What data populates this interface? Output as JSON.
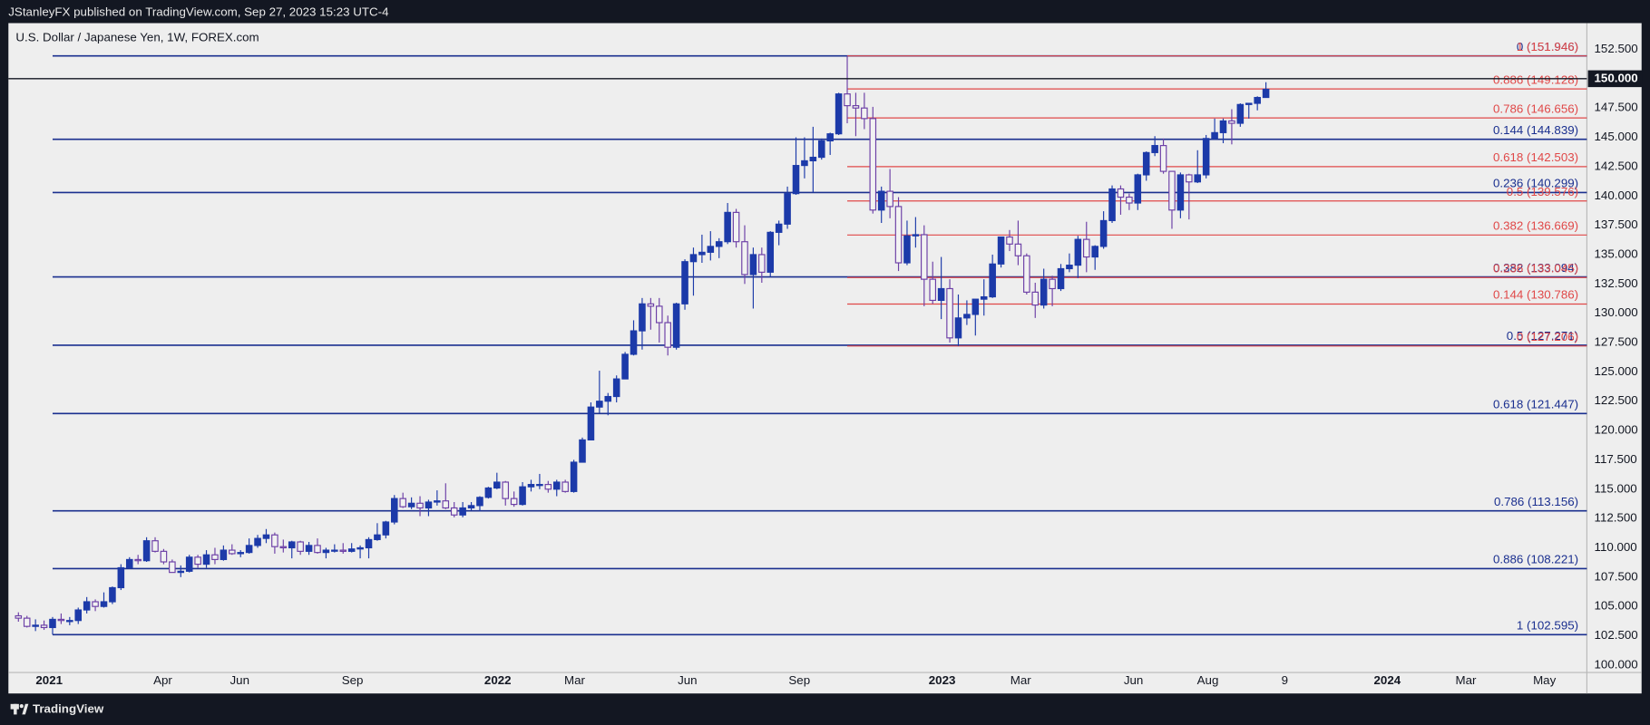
{
  "header": {
    "publisher": "JStanleyFX published on TradingView.com, Sep 27, 2023 15:23 UTC-4",
    "symbol": "U.S. Dollar / Japanese Yen, 1W, FOREX.com"
  },
  "footer": {
    "brand": "TradingView"
  },
  "chart_data": {
    "type": "candlestick",
    "up_color": "#1c3aa9",
    "down_color": "#6c3fa6",
    "down_fill": "#f2f2f2",
    "grid": false,
    "xlim": [
      -5.17,
      179.56
    ],
    "ylim": [
      99.37,
      154.74
    ],
    "xticks": [
      {
        "value": -0.4,
        "label": "2021"
      },
      {
        "value": 12.9,
        "label": "Apr"
      },
      {
        "value": 21.9,
        "label": "Jun"
      },
      {
        "value": 35.1,
        "label": "Sep"
      },
      {
        "value": 52.1,
        "label": "2022"
      },
      {
        "value": 61.1,
        "label": "Mar"
      },
      {
        "value": 74.3,
        "label": "Jun"
      },
      {
        "value": 87.4,
        "label": "Sep"
      },
      {
        "value": 104.1,
        "label": "2023"
      },
      {
        "value": 113.3,
        "label": "Mar"
      },
      {
        "value": 126.5,
        "label": "Jun"
      },
      {
        "value": 135.2,
        "label": "Aug"
      },
      {
        "value": 144.2,
        "label": "9"
      },
      {
        "value": 156.2,
        "label": "2024"
      },
      {
        "value": 165.4,
        "label": "Mar"
      },
      {
        "value": 174.6,
        "label": "May"
      }
    ],
    "yticks": [
      {
        "value": 100,
        "label": "100.000"
      },
      {
        "value": 102.5,
        "label": "102.500"
      },
      {
        "value": 105,
        "label": "105.000"
      },
      {
        "value": 107.5,
        "label": "107.500"
      },
      {
        "value": 110,
        "label": "110.000"
      },
      {
        "value": 112.5,
        "label": "112.500"
      },
      {
        "value": 115,
        "label": "115.000"
      },
      {
        "value": 117.5,
        "label": "117.500"
      },
      {
        "value": 120,
        "label": "120.000"
      },
      {
        "value": 122.5,
        "label": "122.500"
      },
      {
        "value": 125,
        "label": "125.000"
      },
      {
        "value": 127.5,
        "label": "127.500"
      },
      {
        "value": 130,
        "label": "130.000"
      },
      {
        "value": 132.5,
        "label": "132.500"
      },
      {
        "value": 135,
        "label": "135.000"
      },
      {
        "value": 137.5,
        "label": "137.500"
      },
      {
        "value": 140,
        "label": "140.000"
      },
      {
        "value": 142.5,
        "label": "142.500"
      },
      {
        "value": 145,
        "label": "145.000"
      },
      {
        "value": 147.5,
        "label": "147.500"
      },
      {
        "value": 152.5,
        "label": "152.500"
      }
    ],
    "horizontal_line": {
      "value": 150,
      "label": "150.000",
      "color": "#131722"
    },
    "fib_retracements": [
      {
        "x_start": 0,
        "color": "#1a2f8f",
        "levels": [
          {
            "value": 151.946,
            "label": "0 (151.946)"
          },
          {
            "value": 144.839,
            "label": "0.144 (144.839)"
          },
          {
            "value": 140.299,
            "label": "0.236 (140.299)"
          },
          {
            "value": 133.094,
            "label": "0.382 (133.094)"
          },
          {
            "value": 127.271,
            "label": "0.5 (127.271)"
          },
          {
            "value": 121.447,
            "label": "0.618 (121.447)"
          },
          {
            "value": 113.156,
            "label": "0.786 (113.156)"
          },
          {
            "value": 108.221,
            "label": "0.886 (108.221)"
          },
          {
            "value": 102.595,
            "label": "1 (102.595)"
          }
        ]
      },
      {
        "x_start": 93,
        "color": "#e04848",
        "levels": [
          {
            "value": 151.946,
            "label": "1 (151.946)"
          },
          {
            "value": 149.128,
            "label": "0.886 (149.128)"
          },
          {
            "value": 146.656,
            "label": "0.786 (146.656)"
          },
          {
            "value": 142.503,
            "label": "0.618 (142.503)"
          },
          {
            "value": 139.576,
            "label": "0.5 (139.576)"
          },
          {
            "value": 136.669,
            "label": "0.382 (136.669)"
          },
          {
            "value": 133.045,
            "label": "0.236 (133.045)"
          },
          {
            "value": 130.786,
            "label": "0.144 (130.786)"
          },
          {
            "value": 127.206,
            "label": "0 (127.206)"
          }
        ]
      }
    ],
    "x": [
      -4,
      -3,
      -2,
      -1,
      0,
      1,
      2,
      3,
      4,
      5,
      6,
      7,
      8,
      9,
      10,
      11,
      12,
      13,
      14,
      15,
      16,
      17,
      18,
      19,
      20,
      21,
      22,
      23,
      24,
      25,
      26,
      27,
      28,
      29,
      30,
      31,
      32,
      33,
      34,
      35,
      36,
      37,
      38,
      39,
      40,
      41,
      42,
      43,
      44,
      45,
      46,
      47,
      48,
      49,
      50,
      51,
      52,
      53,
      54,
      55,
      56,
      57,
      58,
      59,
      60,
      61,
      62,
      63,
      64,
      65,
      66,
      67,
      68,
      69,
      70,
      71,
      72,
      73,
      74,
      75,
      76,
      77,
      78,
      79,
      80,
      81,
      82,
      83,
      84,
      85,
      86,
      87,
      88,
      89,
      90,
      91,
      92,
      93,
      94,
      95,
      96,
      97,
      98,
      99,
      100,
      101,
      102,
      103,
      104,
      105,
      106,
      107,
      108,
      109,
      110,
      111,
      112,
      113,
      114,
      115,
      116,
      117,
      118,
      119,
      120,
      121,
      122,
      123,
      124,
      125,
      126,
      127,
      128,
      129,
      130,
      131,
      132,
      133,
      134,
      135,
      136,
      137,
      138,
      139,
      140,
      141,
      142
    ],
    "open": [
      104.2,
      104.0,
      103.3,
      103.4,
      103.2,
      103.9,
      103.8,
      103.8,
      104.7,
      105.4,
      105.0,
      105.4,
      106.6,
      108.3,
      109.0,
      108.9,
      110.6,
      109.7,
      108.8,
      107.9,
      108.0,
      109.2,
      108.6,
      109.4,
      109.0,
      109.8,
      109.5,
      109.6,
      110.2,
      110.8,
      111.1,
      110.1,
      110.0,
      110.5,
      109.7,
      110.2,
      109.6,
      109.8,
      109.8,
      109.7,
      109.9,
      110.0,
      110.7,
      111.1,
      112.2,
      114.2,
      113.5,
      113.8,
      113.4,
      113.9,
      114.0,
      113.4,
      112.8,
      113.4,
      113.6,
      114.3,
      115.1,
      115.6,
      114.2,
      113.7,
      115.2,
      115.4,
      115.4,
      115.0,
      115.6,
      114.8,
      117.3,
      119.2,
      122.0,
      122.5,
      122.9,
      124.4,
      126.5,
      128.5,
      130.8,
      130.6,
      129.2,
      127.1,
      130.8,
      134.4,
      135.0,
      135.2,
      135.7,
      136.1,
      138.6,
      136.1,
      133.3,
      135.0,
      133.5,
      136.9,
      137.6,
      140.2,
      142.6,
      143.0,
      143.3,
      144.7,
      145.3,
      148.7,
      147.7,
      147.5,
      146.6,
      138.8,
      140.4,
      139.1,
      134.3,
      136.6,
      136.7,
      132.9,
      131.1,
      132.1,
      127.9,
      129.6,
      129.9,
      131.2,
      131.4,
      134.2,
      136.5,
      135.9,
      134.9,
      131.8,
      130.7,
      132.9,
      132.1,
      133.8,
      134.1,
      136.3,
      134.8,
      135.7,
      137.9,
      140.6,
      139.9,
      139.4,
      141.8,
      143.7,
      144.3,
      142.1,
      138.8,
      141.8,
      141.2,
      141.8,
      144.9,
      145.4,
      146.4,
      146.2,
      147.8,
      147.9,
      148.4
    ],
    "high": [
      104.5,
      104.2,
      103.9,
      103.8,
      104.1,
      104.4,
      104.1,
      104.9,
      105.8,
      105.6,
      106.2,
      106.7,
      108.6,
      109.2,
      109.4,
      110.9,
      110.9,
      109.9,
      109.0,
      108.5,
      109.4,
      109.4,
      109.8,
      110.0,
      110.2,
      110.3,
      109.8,
      110.8,
      111.1,
      111.6,
      111.3,
      110.7,
      110.6,
      110.6,
      110.5,
      110.8,
      110.0,
      110.3,
      110.4,
      110.4,
      110.2,
      110.9,
      112.1,
      112.3,
      114.5,
      114.7,
      114.3,
      114.4,
      114.1,
      114.9,
      115.5,
      113.9,
      113.9,
      113.9,
      114.4,
      115.2,
      116.4,
      115.7,
      114.8,
      115.6,
      115.8,
      116.3,
      115.7,
      115.8,
      115.8,
      117.5,
      119.4,
      122.4,
      125.1,
      123.2,
      124.7,
      126.7,
      129.4,
      131.3,
      131.3,
      131.3,
      129.8,
      130.9,
      134.6,
      135.6,
      136.7,
      137.0,
      136.4,
      139.4,
      138.9,
      137.5,
      135.6,
      135.6,
      137.0,
      137.9,
      140.8,
      145.0,
      145.0,
      145.9,
      144.9,
      145.4,
      148.8,
      151.95,
      148.8,
      148.8,
      147.6,
      140.8,
      142.3,
      139.9,
      137.9,
      138.2,
      137.5,
      134.4,
      134.8,
      132.9,
      131.6,
      131.1,
      131.2,
      132.9,
      135.0,
      136.5,
      137.1,
      137.9,
      135.1,
      132.6,
      133.8,
      133.2,
      134.2,
      135.1,
      136.6,
      137.8,
      135.8,
      138.7,
      140.9,
      140.9,
      140.2,
      141.9,
      143.8,
      145.1,
      144.9,
      142.1,
      142.0,
      141.9,
      143.9,
      145.2,
      146.6,
      146.6,
      147.4,
      147.9,
      147.9,
      148.5,
      149.7
    ],
    "low": [
      103.7,
      103.2,
      102.9,
      103.0,
      102.6,
      103.5,
      103.4,
      103.5,
      104.4,
      104.6,
      104.9,
      105.2,
      106.4,
      108.2,
      108.6,
      108.8,
      109.6,
      108.6,
      107.9,
      107.5,
      107.9,
      108.3,
      108.3,
      108.6,
      108.9,
      109.4,
      109.2,
      109.5,
      110.0,
      110.4,
      109.5,
      109.6,
      109.1,
      109.4,
      109.4,
      109.5,
      109.1,
      109.6,
      109.5,
      109.6,
      109.1,
      109.1,
      110.6,
      110.8,
      112.0,
      113.4,
      113.3,
      112.7,
      112.7,
      113.6,
      113.3,
      112.6,
      112.6,
      113.2,
      113.1,
      114.2,
      115.0,
      113.6,
      113.5,
      113.6,
      114.8,
      115.0,
      114.7,
      114.4,
      114.7,
      114.7,
      117.3,
      119.2,
      121.5,
      121.3,
      122.4,
      124.4,
      126.4,
      126.9,
      128.6,
      127.5,
      126.4,
      126.9,
      130.3,
      131.5,
      134.3,
      134.5,
      134.7,
      135.9,
      135.6,
      132.5,
      130.4,
      132.6,
      133.1,
      135.8,
      137.2,
      140.1,
      141.5,
      140.3,
      143.1,
      143.5,
      145.2,
      146.2,
      145.1,
      145.7,
      138.5,
      137.7,
      138.1,
      133.6,
      134.1,
      135.6,
      130.6,
      130.8,
      129.5,
      127.5,
      127.2,
      129.0,
      128.1,
      129.8,
      131.3,
      133.9,
      135.3,
      134.1,
      131.6,
      129.6,
      130.4,
      130.6,
      131.9,
      133.5,
      133.0,
      133.5,
      133.7,
      135.5,
      137.7,
      138.4,
      138.8,
      138.8,
      141.3,
      143.4,
      141.9,
      137.2,
      138.1,
      138.0,
      141.1,
      141.5,
      144.8,
      144.5,
      144.4,
      145.9,
      146.6,
      147.3,
      148.4
    ],
    "close": [
      104.0,
      103.3,
      103.4,
      103.2,
      103.9,
      103.8,
      103.8,
      104.7,
      105.4,
      105.0,
      105.4,
      106.6,
      108.3,
      109.0,
      108.9,
      110.6,
      109.7,
      108.8,
      107.9,
      108.0,
      109.2,
      108.6,
      109.4,
      109.0,
      109.8,
      109.5,
      109.6,
      110.2,
      110.8,
      111.1,
      110.1,
      110.0,
      110.5,
      109.7,
      110.2,
      109.6,
      109.8,
      109.8,
      109.7,
      109.9,
      110.0,
      110.7,
      111.1,
      112.2,
      114.2,
      113.5,
      113.8,
      113.4,
      113.9,
      114.0,
      113.4,
      112.8,
      113.4,
      113.6,
      114.3,
      115.1,
      115.6,
      114.2,
      113.7,
      115.2,
      115.4,
      115.4,
      115.0,
      115.6,
      114.8,
      117.3,
      119.2,
      122.0,
      122.5,
      122.9,
      124.4,
      126.5,
      128.5,
      130.8,
      130.6,
      129.2,
      127.1,
      130.8,
      134.4,
      135.0,
      135.2,
      135.7,
      136.1,
      138.6,
      136.1,
      133.3,
      135.0,
      133.5,
      136.9,
      137.6,
      140.2,
      142.6,
      143.0,
      143.3,
      144.7,
      145.3,
      148.7,
      147.7,
      147.5,
      146.6,
      138.8,
      140.4,
      139.1,
      134.3,
      136.6,
      136.7,
      132.9,
      131.1,
      132.1,
      127.9,
      129.6,
      129.9,
      131.2,
      131.4,
      134.2,
      136.5,
      135.9,
      134.9,
      131.8,
      130.7,
      132.9,
      132.1,
      133.8,
      134.1,
      136.3,
      134.8,
      135.7,
      137.9,
      140.6,
      139.9,
      139.4,
      141.8,
      143.7,
      144.3,
      142.1,
      138.8,
      141.8,
      141.2,
      141.8,
      144.9,
      145.4,
      146.4,
      146.2,
      147.8,
      147.9,
      148.4,
      149.1
    ]
  }
}
